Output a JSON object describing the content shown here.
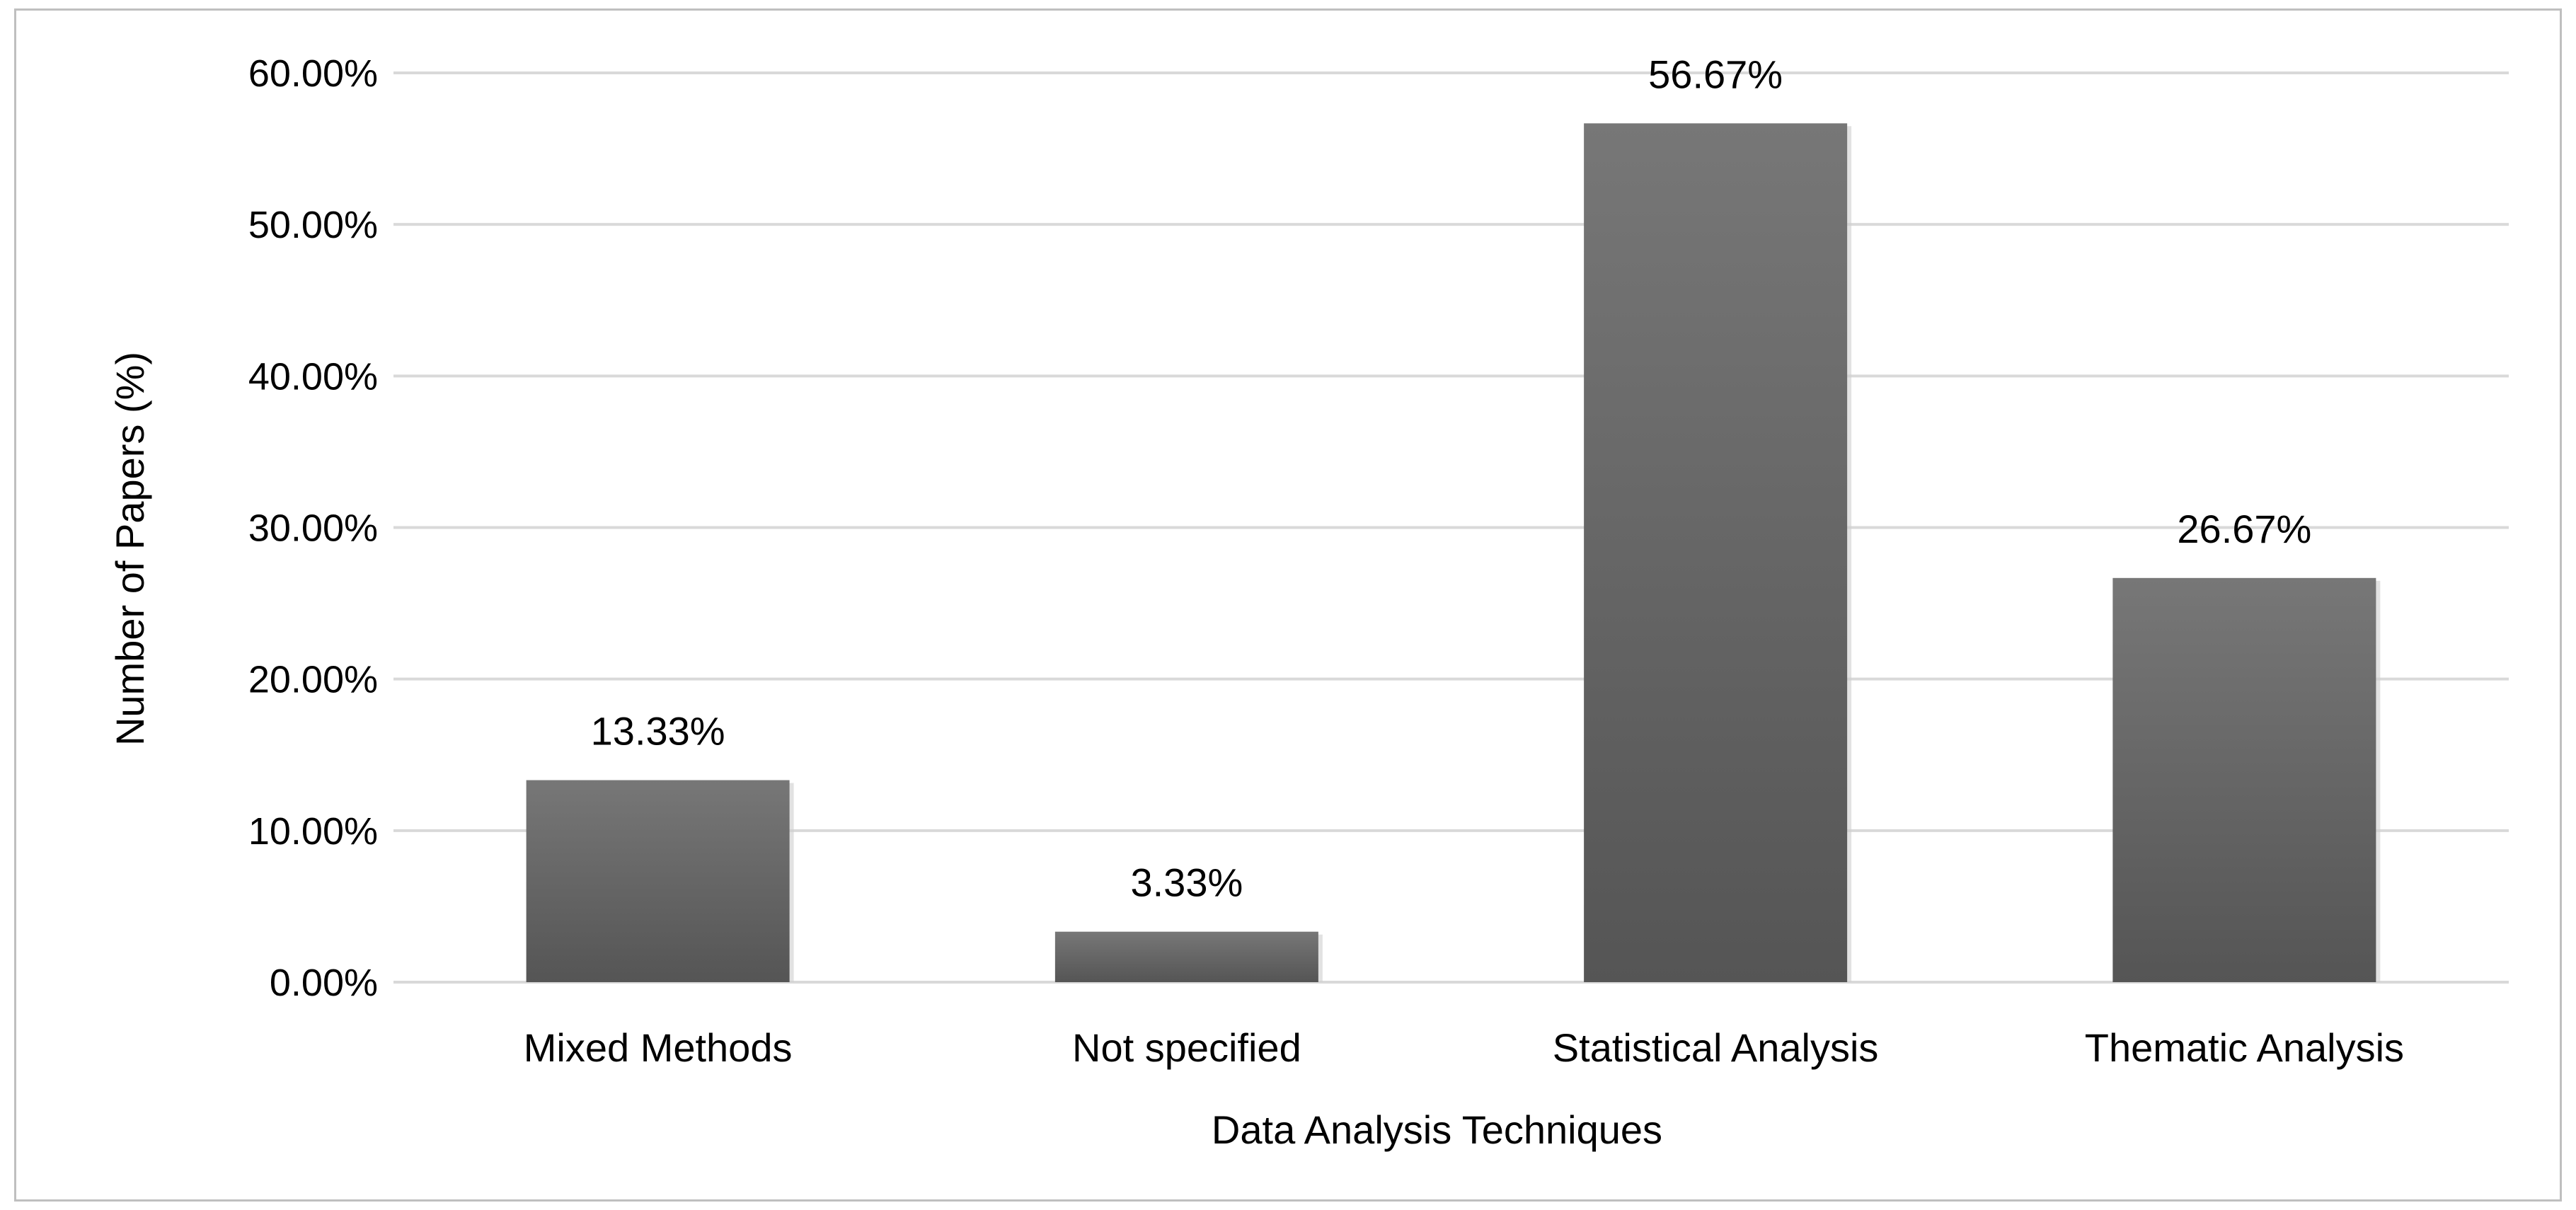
{
  "chart_data": {
    "type": "bar",
    "title": "",
    "xlabel": "Data Analysis Techniques",
    "ylabel": "Number of Papers (%)",
    "categories": [
      "Mixed Methods",
      "Not specified",
      "Statistical Analysis",
      "Thematic Analysis"
    ],
    "values": [
      13.33,
      3.33,
      56.67,
      26.67
    ],
    "data_labels": [
      "13.33%",
      "3.33%",
      "56.67%",
      "26.67%"
    ],
    "ylim": [
      0,
      60
    ],
    "yticks": [
      0,
      10,
      20,
      30,
      40,
      50,
      60
    ],
    "ytick_labels": [
      "0.00%",
      "10.00%",
      "20.00%",
      "30.00%",
      "40.00%",
      "50.00%",
      "60.00%"
    ],
    "grid": true,
    "legend": "none",
    "colors": {
      "bar_top": "#777777",
      "bar_bottom": "#555555",
      "grid": "#d9d9d9",
      "border": "#bfbfbf"
    }
  }
}
